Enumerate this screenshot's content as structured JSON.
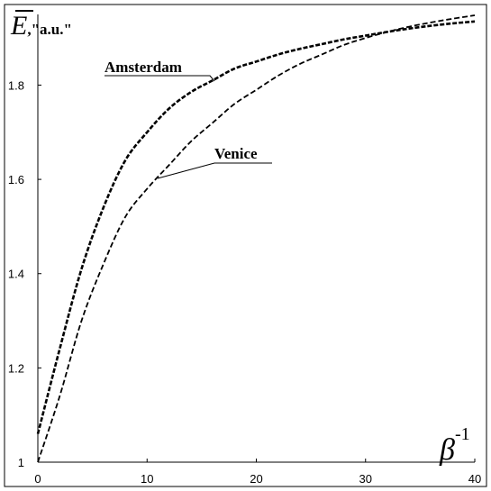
{
  "chart_data": {
    "type": "line",
    "xlabel": {
      "symbol": "β",
      "superscript": "-1"
    },
    "ylabel": {
      "symbol": "E",
      "unit": ",\"a.u.\""
    },
    "xlim": [
      0,
      40
    ],
    "ylim": [
      1.0,
      1.95
    ],
    "x_ticks": [
      "0",
      "10",
      "20",
      "30",
      "40"
    ],
    "y_ticks": [
      "1",
      "1.2",
      "1.4",
      "1.6",
      "1.8"
    ],
    "x_tick_values": [
      0,
      10,
      20,
      30,
      40
    ],
    "y_tick_values": [
      1.0,
      1.2,
      1.4,
      1.6,
      1.8
    ],
    "grid": false,
    "series": [
      {
        "name": "Amsterdam",
        "x": [
          0,
          2,
          4,
          6,
          8,
          10,
          12,
          14,
          16,
          18,
          20,
          22,
          24,
          26,
          28,
          30,
          32,
          34,
          36,
          38,
          40
        ],
        "y": [
          1.06,
          1.24,
          1.41,
          1.54,
          1.64,
          1.7,
          1.75,
          1.785,
          1.81,
          1.835,
          1.85,
          1.865,
          1.877,
          1.887,
          1.897,
          1.905,
          1.913,
          1.92,
          1.926,
          1.931,
          1.935
        ]
      },
      {
        "name": "Venice",
        "x": [
          0,
          2,
          4,
          6,
          8,
          10,
          12,
          14,
          16,
          18,
          20,
          22,
          24,
          26,
          28,
          30,
          32,
          34,
          36,
          38,
          40
        ],
        "y": [
          1.0,
          1.14,
          1.3,
          1.42,
          1.52,
          1.58,
          1.63,
          1.68,
          1.72,
          1.76,
          1.79,
          1.82,
          1.845,
          1.865,
          1.885,
          1.9,
          1.913,
          1.924,
          1.933,
          1.941,
          1.948
        ]
      }
    ],
    "annotations": [
      {
        "text": "Amsterdam",
        "series": "Amsterdam",
        "at_x": 15,
        "at_y": 1.8
      },
      {
        "text": "Venice",
        "series": "Venice",
        "at_x": 11,
        "at_y": 1.61
      }
    ]
  }
}
